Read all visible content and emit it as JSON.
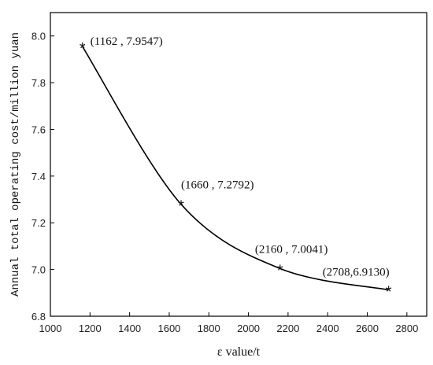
{
  "chart_data": {
    "type": "line",
    "title": "",
    "xlabel": "ε value/t",
    "ylabel": "Annual total operating cost/million yuan",
    "xlim": [
      1000,
      2900
    ],
    "ylim": [
      6.8,
      8.1
    ],
    "x_ticks": [
      1000,
      1200,
      1400,
      1600,
      1800,
      2000,
      2200,
      2400,
      2600,
      2800
    ],
    "y_ticks": [
      6.8,
      7.0,
      7.2,
      7.4,
      7.6,
      7.8,
      8.0
    ],
    "y_tick_labels": [
      "6.8",
      "7.0",
      "7.2",
      "7.4",
      "7.6",
      "7.8",
      "8.0"
    ],
    "grid": false,
    "marker": "*",
    "line_color": "#000000",
    "series": [
      {
        "x": [
          1162,
          1660,
          2160,
          2708
        ],
        "y": [
          7.9547,
          7.2792,
          7.0041,
          6.913
        ]
      }
    ],
    "annotations": [
      "(1162 , 7.9547)",
      "(1660 , 7.2792)",
      "(2160 , 7.0041)",
      "(2708,6.9130)"
    ]
  }
}
